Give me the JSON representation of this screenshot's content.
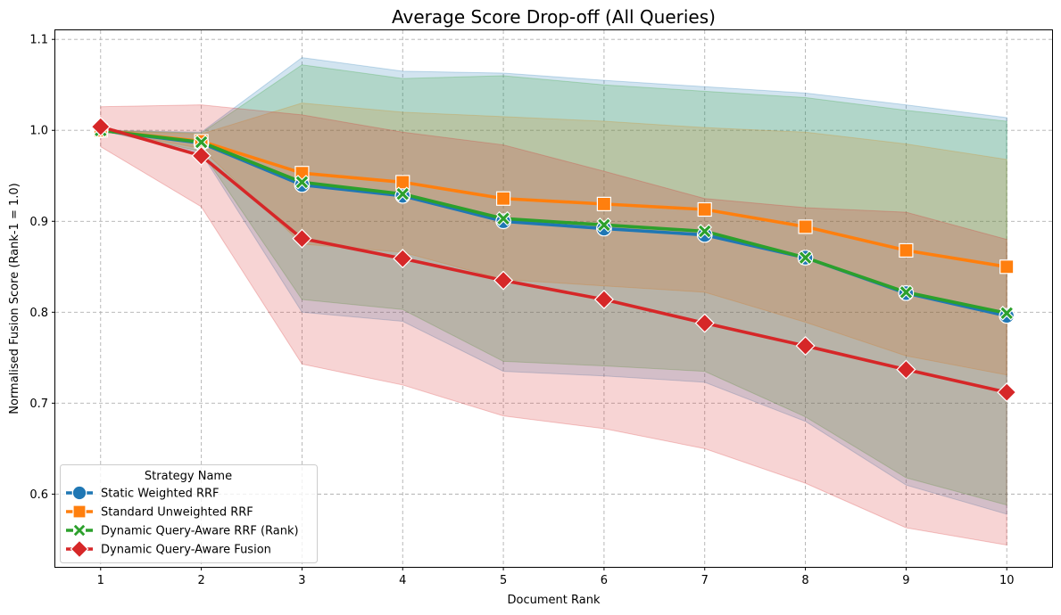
{
  "chart_data": {
    "type": "line",
    "title": "Average Score Drop-off (All Queries)",
    "xlabel": "Document Rank",
    "ylabel": "Normalised Fusion Score (Rank-1 = 1.0)",
    "x": [
      1,
      2,
      3,
      4,
      5,
      6,
      7,
      8,
      9,
      10
    ],
    "x_ticks": [
      "1",
      "2",
      "3",
      "4",
      "5",
      "6",
      "7",
      "8",
      "9",
      "10"
    ],
    "y_ticks": [
      "0.6",
      "0.7",
      "0.8",
      "0.9",
      "1.0",
      "1.1"
    ],
    "y_tick_values": [
      0.6,
      0.7,
      0.8,
      0.9,
      1.0,
      1.1
    ],
    "xlim": [
      0.55,
      10.45
    ],
    "ylim": [
      0.52,
      1.11
    ],
    "grid": true,
    "legend": {
      "title": "Strategy Name",
      "placement": "lower-left"
    },
    "series": [
      {
        "name": "Static Weighted RRF",
        "color": "#1f77b4",
        "marker": "circle",
        "values": [
          1.0,
          0.986,
          0.94,
          0.928,
          0.9,
          0.892,
          0.885,
          0.86,
          0.821,
          0.796
        ],
        "band_upper": [
          1.0,
          0.998,
          1.08,
          1.065,
          1.063,
          1.055,
          1.048,
          1.041,
          1.028,
          1.014
        ],
        "band_lower": [
          1.0,
          0.975,
          0.8,
          0.79,
          0.735,
          0.73,
          0.723,
          0.68,
          0.61,
          0.578
        ]
      },
      {
        "name": "Standard Unweighted RRF",
        "color": "#ff7f0e",
        "marker": "square",
        "values": [
          1.0,
          0.988,
          0.953,
          0.943,
          0.925,
          0.919,
          0.913,
          0.894,
          0.868,
          0.85
        ],
        "band_upper": [
          1.0,
          0.996,
          1.03,
          1.02,
          1.015,
          1.01,
          1.003,
          0.998,
          0.985,
          0.968
        ],
        "band_lower": [
          1.0,
          0.98,
          0.875,
          0.866,
          0.836,
          0.829,
          0.822,
          0.789,
          0.752,
          0.731
        ]
      },
      {
        "name": "Dynamic Query-Aware RRF (Rank)",
        "color": "#2ca02c",
        "marker": "x",
        "values": [
          1.0,
          0.987,
          0.943,
          0.93,
          0.903,
          0.896,
          0.889,
          0.86,
          0.822,
          0.799
        ],
        "band_upper": [
          1.0,
          0.997,
          1.072,
          1.057,
          1.06,
          1.05,
          1.043,
          1.036,
          1.022,
          1.01
        ],
        "band_lower": [
          1.0,
          0.977,
          0.814,
          0.803,
          0.746,
          0.741,
          0.735,
          0.685,
          0.618,
          0.588
        ]
      },
      {
        "name": "Dynamic Query-Aware Fusion",
        "color": "#d62728",
        "marker": "diamond",
        "values": [
          1.004,
          0.972,
          0.881,
          0.859,
          0.835,
          0.814,
          0.788,
          0.763,
          0.737,
          0.712
        ],
        "band_upper": [
          1.026,
          1.028,
          1.017,
          0.998,
          0.984,
          0.955,
          0.925,
          0.915,
          0.91,
          0.88
        ],
        "band_lower": [
          0.982,
          0.916,
          0.743,
          0.72,
          0.686,
          0.672,
          0.65,
          0.612,
          0.563,
          0.544
        ]
      }
    ]
  }
}
